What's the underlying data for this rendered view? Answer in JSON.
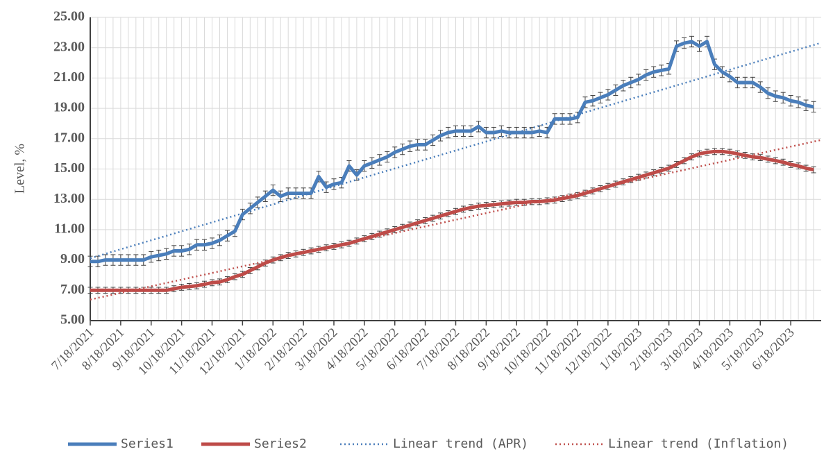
{
  "chart_data": {
    "type": "line",
    "y_label": "Level, %",
    "categories": [
      "7/18/2021",
      null,
      null,
      null,
      "8/18/2021",
      null,
      null,
      null,
      "9/18/2021",
      null,
      null,
      null,
      "10/18/2021",
      null,
      null,
      null,
      "11/18/2021",
      null,
      null,
      null,
      "12/18/2021",
      null,
      null,
      null,
      "1/18/2022",
      null,
      null,
      null,
      "2/18/2022",
      null,
      null,
      null,
      "3/18/2022",
      null,
      null,
      null,
      "4/18/2022",
      null,
      null,
      null,
      "5/18/2022",
      null,
      null,
      null,
      "6/18/2022",
      null,
      null,
      null,
      "7/18/2022",
      null,
      null,
      null,
      "8/18/2022",
      null,
      null,
      null,
      "9/18/2022",
      null,
      null,
      null,
      "10/18/2022",
      null,
      null,
      null,
      "11/18/2022",
      null,
      null,
      null,
      "12/18/2022",
      null,
      null,
      null,
      "1/18/2023",
      null,
      null,
      null,
      "2/18/2023",
      null,
      null,
      null,
      "3/18/2023",
      null,
      null,
      null,
      "4/18/2023",
      null,
      null,
      null,
      "5/18/2023",
      null,
      null,
      null,
      "6/18/2023",
      null,
      null,
      null
    ],
    "series": [
      {
        "name": "Series1",
        "color": "#4a7ebb",
        "error": 0.35,
        "values": [
          8.9,
          8.9,
          9.0,
          9.0,
          9.0,
          9.0,
          9.0,
          9.0,
          9.2,
          9.3,
          9.4,
          9.6,
          9.6,
          9.7,
          10.0,
          10.0,
          10.1,
          10.3,
          10.6,
          10.9,
          12.0,
          12.4,
          12.8,
          13.2,
          13.6,
          13.2,
          13.4,
          13.4,
          13.4,
          13.4,
          14.5,
          13.8,
          14.0,
          14.1,
          15.2,
          14.6,
          15.2,
          15.4,
          15.6,
          15.8,
          16.1,
          16.3,
          16.5,
          16.6,
          16.6,
          16.9,
          17.2,
          17.4,
          17.5,
          17.5,
          17.5,
          17.8,
          17.4,
          17.4,
          17.5,
          17.4,
          17.4,
          17.4,
          17.4,
          17.5,
          17.4,
          18.3,
          18.3,
          18.3,
          18.4,
          19.4,
          19.5,
          19.7,
          19.9,
          20.2,
          20.5,
          20.7,
          20.9,
          21.2,
          21.4,
          21.5,
          21.6,
          23.1,
          23.3,
          23.4,
          23.1,
          23.4,
          21.9,
          21.4,
          21.1,
          20.7,
          20.7,
          20.7,
          20.4,
          20.0,
          19.8,
          19.7,
          19.5,
          19.4,
          19.2,
          19.1
        ]
      },
      {
        "name": "Series2",
        "color": "#be4b48",
        "error": 0.2,
        "values": [
          7.0,
          7.0,
          7.0,
          7.0,
          7.0,
          7.0,
          7.0,
          7.0,
          7.0,
          7.0,
          7.0,
          7.1,
          7.2,
          7.25,
          7.3,
          7.4,
          7.5,
          7.55,
          7.7,
          7.9,
          8.05,
          8.3,
          8.55,
          8.8,
          9.0,
          9.15,
          9.3,
          9.4,
          9.5,
          9.6,
          9.7,
          9.8,
          9.9,
          10.0,
          10.1,
          10.25,
          10.4,
          10.55,
          10.7,
          10.85,
          11.0,
          11.15,
          11.3,
          11.45,
          11.6,
          11.75,
          11.9,
          12.05,
          12.2,
          12.35,
          12.45,
          12.55,
          12.6,
          12.65,
          12.7,
          12.75,
          12.8,
          12.8,
          12.85,
          12.85,
          12.9,
          12.95,
          13.05,
          13.15,
          13.25,
          13.4,
          13.55,
          13.7,
          13.85,
          14.0,
          14.15,
          14.3,
          14.45,
          14.6,
          14.75,
          14.9,
          15.05,
          15.3,
          15.55,
          15.8,
          16.0,
          16.1,
          16.15,
          16.15,
          16.1,
          16.0,
          15.9,
          15.8,
          15.75,
          15.65,
          15.55,
          15.45,
          15.3,
          15.2,
          15.05,
          14.95
        ]
      },
      {
        "name": "Linear trend (APR)",
        "color": "#4a7ebb",
        "trend_of": 0
      },
      {
        "name": "Linear trend (Inflation)",
        "color": "#c0504d",
        "trend_of": 1
      }
    ],
    "ylim": [
      5,
      25
    ],
    "yticks": [
      {
        "value": 5,
        "label": "5.00"
      },
      {
        "value": 7,
        "label": "7.00"
      },
      {
        "value": 9,
        "label": "9.00"
      },
      {
        "value": 11,
        "label": "11.00"
      },
      {
        "value": 13,
        "label": "13.00"
      },
      {
        "value": 15,
        "label": "15.00"
      },
      {
        "value": 17,
        "label": "17.00"
      },
      {
        "value": 19,
        "label": "19.00"
      },
      {
        "value": 21,
        "label": "21.00"
      },
      {
        "value": 23,
        "label": "23.00"
      },
      {
        "value": 25,
        "label": "25.00"
      }
    ],
    "grid": true,
    "legend": "bottom"
  }
}
